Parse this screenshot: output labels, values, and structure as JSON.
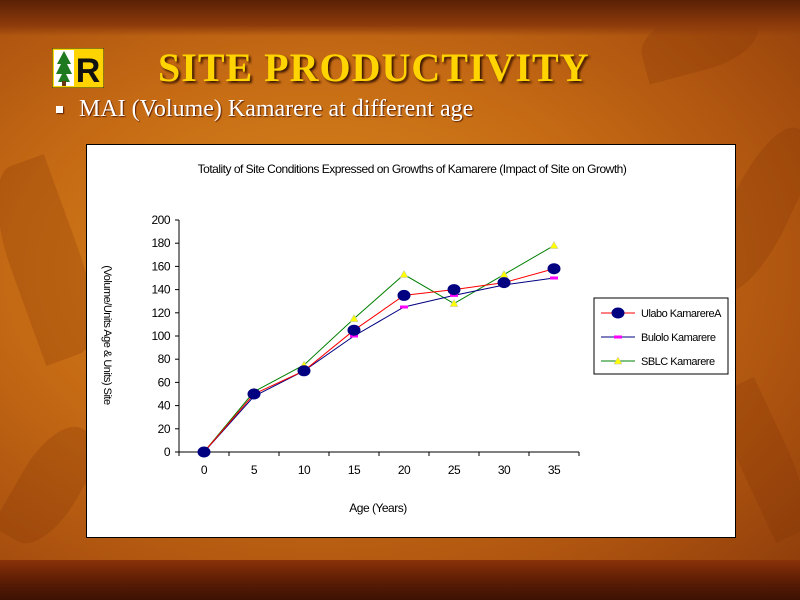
{
  "slide": {
    "title": "SITE  PRODUCTIVITY",
    "bullet": "MAI (Volume) Kamarere  at different age",
    "logo_letter": "R"
  },
  "colors": {
    "title": "#ffd400",
    "background": "#c56a14",
    "series_1": "#000080",
    "series_1_line": "#ff0000",
    "series_2": "#ff00ff",
    "series_2_line": "#000080",
    "series_3": "#ffff00",
    "series_3_line": "#008000"
  },
  "chart_data": {
    "type": "line",
    "title": "Totality of Site Conditions Expressed on Growths of Kamarere (Impact of Site on Growth)",
    "xlabel": "Age (Years)",
    "ylabel": "(Volume/Units Age & Units) Site",
    "x": [
      0,
      5,
      10,
      15,
      20,
      25,
      30,
      35
    ],
    "ylim": [
      0,
      200
    ],
    "yticks": [
      0,
      20,
      40,
      60,
      80,
      100,
      120,
      140,
      160,
      180,
      200
    ],
    "grid": false,
    "legend_position": "right",
    "series": [
      {
        "name": "Ulabo KamarereA",
        "marker": "circle",
        "values": [
          0,
          50,
          70,
          105,
          135,
          140,
          146,
          158
        ]
      },
      {
        "name": "Bulolo Kamarere",
        "marker": "dash",
        "values": [
          0,
          48,
          70,
          100,
          125,
          135,
          144,
          150
        ]
      },
      {
        "name": "SBLC Kamarere",
        "marker": "triangle",
        "values": [
          0,
          52,
          75,
          115,
          153,
          128,
          153,
          178
        ]
      }
    ]
  }
}
